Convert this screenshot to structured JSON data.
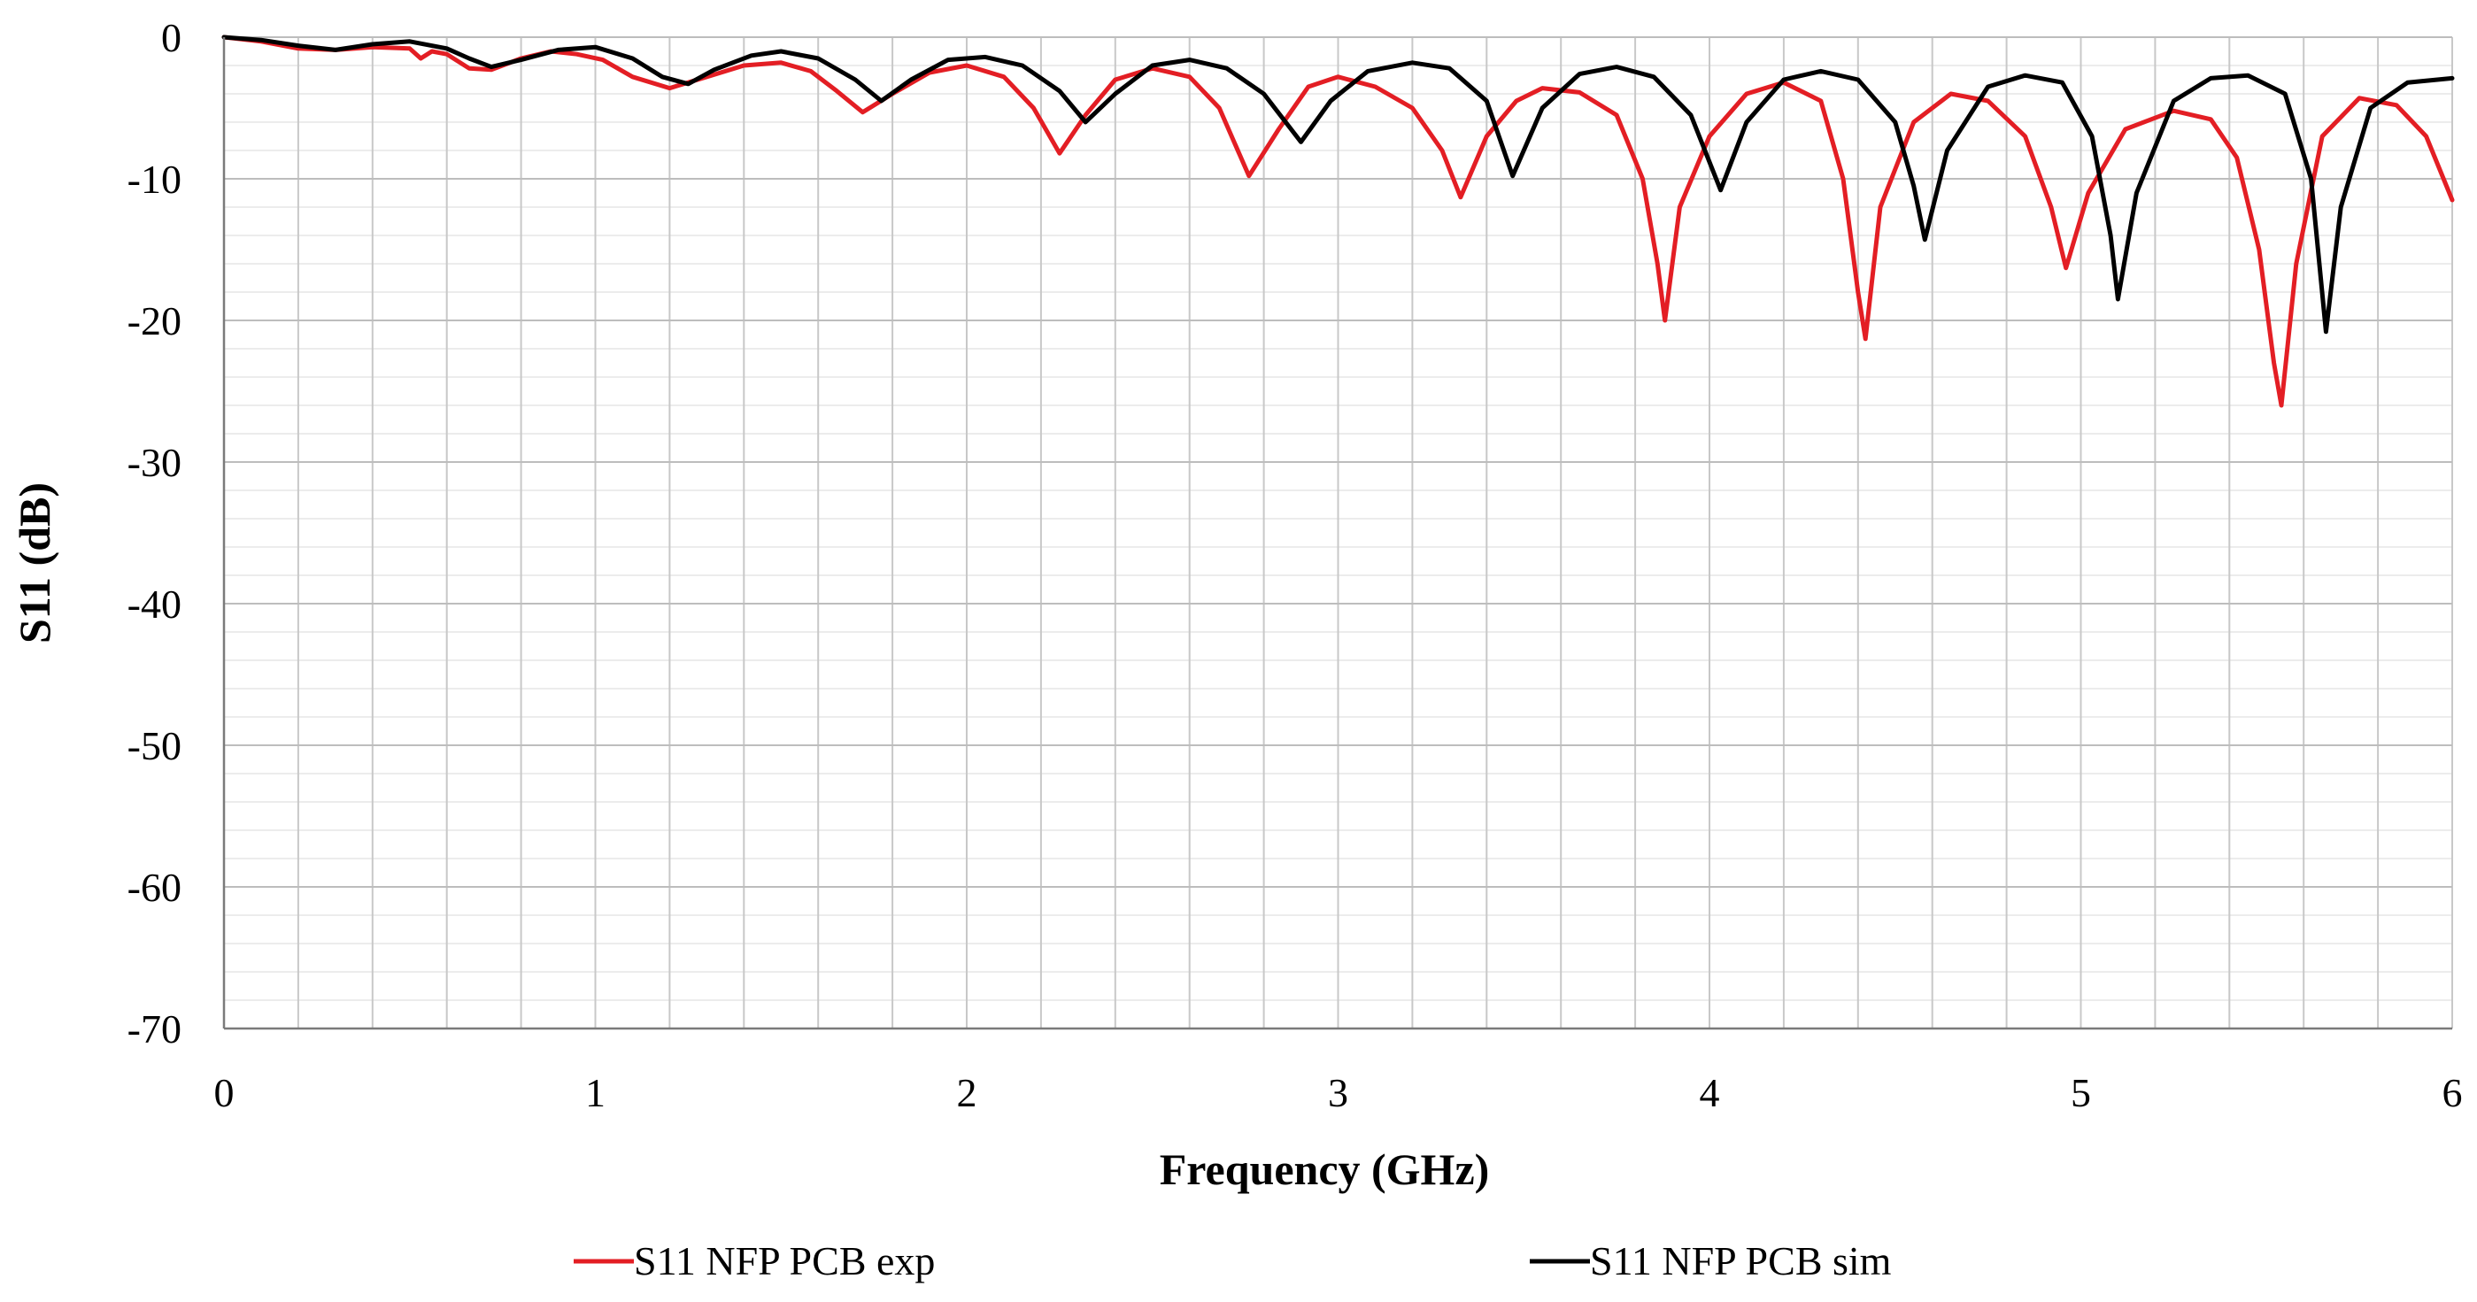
{
  "chart_data": {
    "type": "line",
    "title": "",
    "xlabel": "Frequency (GHz)",
    "ylabel": "S11 (dB)",
    "xlim": [
      0,
      6
    ],
    "ylim": [
      -70,
      0
    ],
    "x_ticks": [
      0,
      1,
      2,
      3,
      4,
      5,
      6
    ],
    "x_tick_labels": [
      "0",
      "1",
      "2",
      "3",
      "4",
      "5",
      "6"
    ],
    "y_ticks": [
      0,
      -10,
      -20,
      -30,
      -40,
      -50,
      -60,
      -70
    ],
    "y_tick_labels": [
      "0",
      "-10",
      "-20",
      "-30",
      "-40",
      "-50",
      "-60",
      "-70"
    ],
    "x_major_grid_step": 0.2,
    "y_minor_grid_step": 2,
    "grid": true,
    "legend_position": "bottom",
    "series": [
      {
        "name": "S11 NFP PCB exp",
        "color": "#e31e24",
        "points": [
          [
            0,
            0
          ],
          [
            0.1,
            -0.3
          ],
          [
            0.2,
            -0.8
          ],
          [
            0.3,
            -0.9
          ],
          [
            0.4,
            -0.7
          ],
          [
            0.5,
            -0.8
          ],
          [
            0.53,
            -1.5
          ],
          [
            0.56,
            -1.0
          ],
          [
            0.6,
            -1.2
          ],
          [
            0.66,
            -2.2
          ],
          [
            0.72,
            -2.3
          ],
          [
            0.8,
            -1.5
          ],
          [
            0.88,
            -1.0
          ],
          [
            0.95,
            -1.2
          ],
          [
            1.02,
            -1.6
          ],
          [
            1.1,
            -2.8
          ],
          [
            1.2,
            -3.6
          ],
          [
            1.3,
            -2.8
          ],
          [
            1.4,
            -2.0
          ],
          [
            1.5,
            -1.8
          ],
          [
            1.58,
            -2.4
          ],
          [
            1.65,
            -3.8
          ],
          [
            1.72,
            -5.3
          ],
          [
            1.8,
            -4.0
          ],
          [
            1.9,
            -2.5
          ],
          [
            2.0,
            -2.0
          ],
          [
            2.1,
            -2.8
          ],
          [
            2.18,
            -5.0
          ],
          [
            2.25,
            -8.2
          ],
          [
            2.32,
            -5.5
          ],
          [
            2.4,
            -3.0
          ],
          [
            2.5,
            -2.2
          ],
          [
            2.6,
            -2.8
          ],
          [
            2.68,
            -5.0
          ],
          [
            2.76,
            -9.8
          ],
          [
            2.84,
            -6.5
          ],
          [
            2.92,
            -3.5
          ],
          [
            3.0,
            -2.8
          ],
          [
            3.1,
            -3.5
          ],
          [
            3.2,
            -5.0
          ],
          [
            3.28,
            -8.0
          ],
          [
            3.33,
            -11.3
          ],
          [
            3.4,
            -7.0
          ],
          [
            3.48,
            -4.5
          ],
          [
            3.55,
            -3.6
          ],
          [
            3.65,
            -3.9
          ],
          [
            3.75,
            -5.5
          ],
          [
            3.82,
            -10.0
          ],
          [
            3.86,
            -16.0
          ],
          [
            3.88,
            -20.0
          ],
          [
            3.92,
            -12.0
          ],
          [
            4.0,
            -7.0
          ],
          [
            4.1,
            -4.0
          ],
          [
            4.2,
            -3.2
          ],
          [
            4.3,
            -4.5
          ],
          [
            4.36,
            -10.0
          ],
          [
            4.4,
            -18.0
          ],
          [
            4.42,
            -21.3
          ],
          [
            4.46,
            -12.0
          ],
          [
            4.55,
            -6.0
          ],
          [
            4.65,
            -4.0
          ],
          [
            4.75,
            -4.5
          ],
          [
            4.85,
            -7.0
          ],
          [
            4.92,
            -12.0
          ],
          [
            4.96,
            -16.3
          ],
          [
            5.02,
            -11.0
          ],
          [
            5.12,
            -6.5
          ],
          [
            5.25,
            -5.2
          ],
          [
            5.35,
            -5.8
          ],
          [
            5.42,
            -8.5
          ],
          [
            5.48,
            -15.0
          ],
          [
            5.52,
            -23.0
          ],
          [
            5.54,
            -26.0
          ],
          [
            5.58,
            -16.0
          ],
          [
            5.65,
            -7.0
          ],
          [
            5.75,
            -4.3
          ],
          [
            5.85,
            -4.8
          ],
          [
            5.93,
            -7.0
          ],
          [
            6.0,
            -11.5
          ]
        ]
      },
      {
        "name": "S11 NFP PCB sim",
        "color": "#000000",
        "points": [
          [
            0,
            0
          ],
          [
            0.1,
            -0.2
          ],
          [
            0.2,
            -0.6
          ],
          [
            0.3,
            -0.9
          ],
          [
            0.4,
            -0.5
          ],
          [
            0.5,
            -0.3
          ],
          [
            0.6,
            -0.8
          ],
          [
            0.66,
            -1.5
          ],
          [
            0.72,
            -2.1
          ],
          [
            0.8,
            -1.6
          ],
          [
            0.9,
            -0.9
          ],
          [
            1.0,
            -0.7
          ],
          [
            1.1,
            -1.5
          ],
          [
            1.18,
            -2.8
          ],
          [
            1.25,
            -3.3
          ],
          [
            1.32,
            -2.3
          ],
          [
            1.42,
            -1.3
          ],
          [
            1.5,
            -1.0
          ],
          [
            1.6,
            -1.5
          ],
          [
            1.7,
            -3.0
          ],
          [
            1.77,
            -4.5
          ],
          [
            1.85,
            -3.0
          ],
          [
            1.95,
            -1.6
          ],
          [
            2.05,
            -1.4
          ],
          [
            2.15,
            -2.0
          ],
          [
            2.25,
            -3.8
          ],
          [
            2.32,
            -6.0
          ],
          [
            2.4,
            -4.0
          ],
          [
            2.5,
            -2.0
          ],
          [
            2.6,
            -1.6
          ],
          [
            2.7,
            -2.2
          ],
          [
            2.8,
            -4.0
          ],
          [
            2.9,
            -7.4
          ],
          [
            2.98,
            -4.5
          ],
          [
            3.08,
            -2.4
          ],
          [
            3.2,
            -1.8
          ],
          [
            3.3,
            -2.2
          ],
          [
            3.4,
            -4.5
          ],
          [
            3.47,
            -9.8
          ],
          [
            3.55,
            -5.0
          ],
          [
            3.65,
            -2.6
          ],
          [
            3.75,
            -2.1
          ],
          [
            3.85,
            -2.8
          ],
          [
            3.95,
            -5.5
          ],
          [
            4.03,
            -10.8
          ],
          [
            4.1,
            -6.0
          ],
          [
            4.2,
            -3.0
          ],
          [
            4.3,
            -2.4
          ],
          [
            4.4,
            -3.0
          ],
          [
            4.5,
            -6.0
          ],
          [
            4.55,
            -10.5
          ],
          [
            4.58,
            -14.3
          ],
          [
            4.64,
            -8.0
          ],
          [
            4.75,
            -3.5
          ],
          [
            4.85,
            -2.7
          ],
          [
            4.95,
            -3.2
          ],
          [
            5.03,
            -7.0
          ],
          [
            5.08,
            -14.0
          ],
          [
            5.1,
            -18.5
          ],
          [
            5.15,
            -11.0
          ],
          [
            5.25,
            -4.5
          ],
          [
            5.35,
            -2.9
          ],
          [
            5.45,
            -2.7
          ],
          [
            5.55,
            -4.0
          ],
          [
            5.62,
            -10.0
          ],
          [
            5.66,
            -20.8
          ],
          [
            5.7,
            -12.0
          ],
          [
            5.78,
            -5.0
          ],
          [
            5.88,
            -3.2
          ],
          [
            6.0,
            -2.9
          ]
        ]
      }
    ]
  }
}
